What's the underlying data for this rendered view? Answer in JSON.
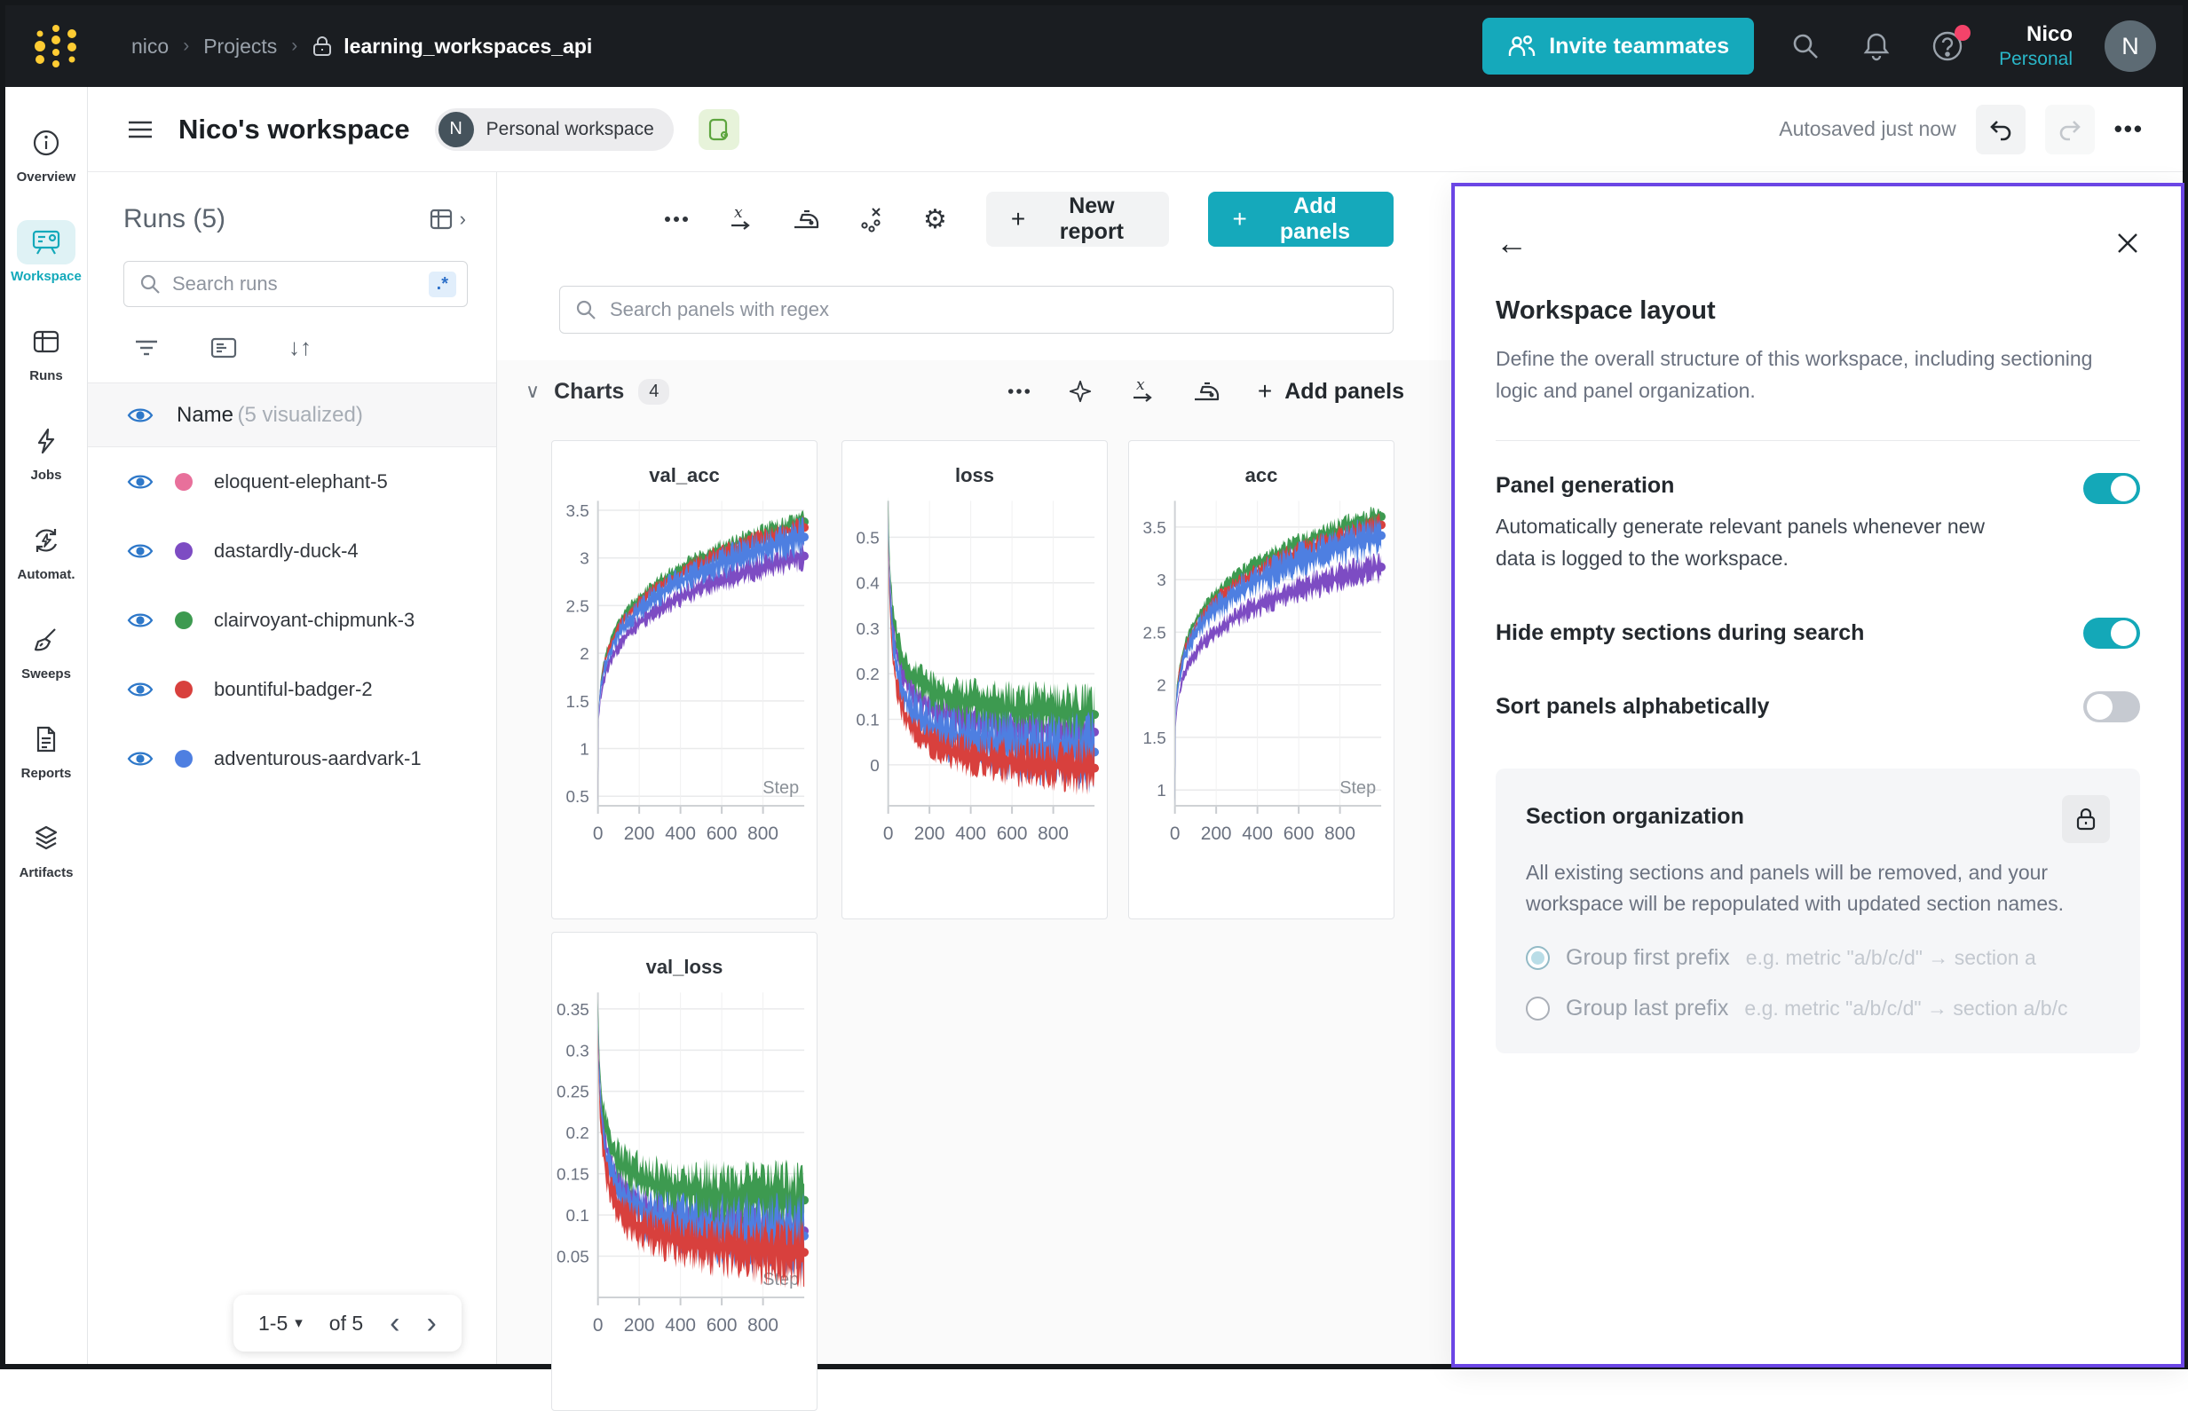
{
  "navbar": {
    "breadcrumb": [
      "nico",
      "Projects"
    ],
    "project": "learning_workspaces_api",
    "invite_label": "Invite teammates",
    "user_name": "Nico",
    "user_scope": "Personal",
    "avatar_initial": "N"
  },
  "header": {
    "title": "Nico's workspace",
    "badge_initial": "N",
    "badge_label": "Personal workspace",
    "autosave_status": "Autosaved just now"
  },
  "sidebar": {
    "items": [
      {
        "label": "Overview",
        "active": false
      },
      {
        "label": "Workspace",
        "active": true
      },
      {
        "label": "Runs",
        "active": false
      },
      {
        "label": "Jobs",
        "active": false
      },
      {
        "label": "Automat.",
        "active": false
      },
      {
        "label": "Sweeps",
        "active": false
      },
      {
        "label": "Reports",
        "active": false
      },
      {
        "label": "Artifacts",
        "active": false
      }
    ]
  },
  "runs_panel": {
    "title": "Runs (5)",
    "search_placeholder": "Search runs",
    "regex_badge": ".*",
    "header_name": "Name",
    "header_sub": "(5 visualized)",
    "runs": [
      {
        "name": "eloquent-elephant-5",
        "color": "#e8709b"
      },
      {
        "name": "dastardly-duck-4",
        "color": "#7d4cc3"
      },
      {
        "name": "clairvoyant-chipmunk-3",
        "color": "#3d9a50"
      },
      {
        "name": "bountiful-badger-2",
        "color": "#d8403d"
      },
      {
        "name": "adventurous-aardvark-1",
        "color": "#4e7fe1"
      }
    ],
    "pagination": {
      "range": "1-5",
      "of": "of 5"
    }
  },
  "main": {
    "new_report_label": "New report",
    "add_panels_label": "Add panels",
    "search_placeholder": "Search panels with regex",
    "section": {
      "title": "Charts",
      "count": "4",
      "add_panels_label": "Add panels"
    }
  },
  "drawer": {
    "title": "Workspace layout",
    "description": "Define the overall structure of this workspace, including sectioning logic and panel organization.",
    "settings": [
      {
        "title": "Panel generation",
        "description": "Automatically generate relevant panels whenever new data is logged to the workspace.",
        "enabled": true
      },
      {
        "title": "Hide empty sections during search",
        "description": "",
        "enabled": true
      },
      {
        "title": "Sort panels alphabetically",
        "description": "",
        "enabled": false
      }
    ],
    "section_org": {
      "title": "Section organization",
      "description": "All existing sections and panels will be removed, and your workspace will be repopulated with updated section names.",
      "options": [
        {
          "label": "Group first prefix",
          "example": "e.g. metric \"a/b/c/d\" → section a",
          "selected": true
        },
        {
          "label": "Group last prefix",
          "example": "e.g. metric \"a/b/c/d\" → section a/b/c",
          "selected": false
        }
      ]
    }
  },
  "palette": {
    "accent_teal": "#13a9ba",
    "drawer_border_purple": "#6b46e5",
    "notification_red": "#f4436a"
  },
  "chart_data": [
    {
      "type": "line",
      "title": "val_acc",
      "xlabel": "Step",
      "x_range": [
        0,
        1000
      ],
      "xticks": [
        0,
        200,
        400,
        600,
        800
      ],
      "ylim": [
        0.4,
        3.6
      ],
      "yticks": [
        0.5,
        1,
        1.5,
        2,
        2.5,
        3,
        3.5
      ],
      "shape": "rise",
      "show_step_label": true,
      "grid": true,
      "legend": false,
      "series": [
        {
          "name": "dastardly-duck-4",
          "color": "#7d4cc3",
          "y_start": 0.45,
          "y_end": 3.02,
          "band": 0.09
        },
        {
          "name": "clairvoyant-chipmunk-3",
          "color": "#3d9a50",
          "y_start": 0.45,
          "y_end": 3.38,
          "band": 0.07
        },
        {
          "name": "bountiful-badger-2",
          "color": "#d8403d",
          "y_start": 0.45,
          "y_end": 3.32,
          "band": 0.07
        },
        {
          "name": "adventurous-aardvark-1",
          "color": "#4e7fe1",
          "y_start": 0.45,
          "y_end": 3.22,
          "band": 0.12
        }
      ]
    },
    {
      "type": "line",
      "title": "loss",
      "xlabel": "Step",
      "x_range": [
        0,
        1000
      ],
      "xticks": [
        0,
        200,
        400,
        600,
        800
      ],
      "ylim": [
        -0.09,
        0.58
      ],
      "yticks": [
        0,
        0.1,
        0.2,
        0.3,
        0.4,
        0.5
      ],
      "shape": "decay",
      "show_step_label": false,
      "grid": true,
      "legend": false,
      "series": [
        {
          "name": "dastardly-duck-4",
          "color": "#7d4cc3",
          "y_start": 0.55,
          "y_end": 0.035,
          "band": 0.035
        },
        {
          "name": "clairvoyant-chipmunk-3",
          "color": "#3d9a50",
          "y_start": 0.57,
          "y_end": 0.075,
          "band": 0.04
        },
        {
          "name": "adventurous-aardvark-1",
          "color": "#4e7fe1",
          "y_start": 0.52,
          "y_end": -0.01,
          "band": 0.05
        },
        {
          "name": "bountiful-badger-2",
          "color": "#d8403d",
          "y_start": 0.48,
          "y_end": -0.045,
          "band": 0.035
        }
      ]
    },
    {
      "type": "line",
      "title": "acc",
      "xlabel": "Step",
      "x_range": [
        0,
        1000
      ],
      "xticks": [
        0,
        200,
        400,
        600,
        800
      ],
      "ylim": [
        0.85,
        3.75
      ],
      "yticks": [
        1,
        1.5,
        2,
        2.5,
        3,
        3.5
      ],
      "shape": "rise",
      "show_step_label": true,
      "grid": true,
      "legend": false,
      "series": [
        {
          "name": "dastardly-duck-4",
          "color": "#7d4cc3",
          "y_start": 0.9,
          "y_end": 3.12,
          "band": 0.09
        },
        {
          "name": "clairvoyant-chipmunk-3",
          "color": "#3d9a50",
          "y_start": 0.9,
          "y_end": 3.6,
          "band": 0.07
        },
        {
          "name": "bountiful-badger-2",
          "color": "#d8403d",
          "y_start": 0.9,
          "y_end": 3.52,
          "band": 0.07
        },
        {
          "name": "adventurous-aardvark-1",
          "color": "#4e7fe1",
          "y_start": 0.9,
          "y_end": 3.42,
          "band": 0.12
        }
      ]
    },
    {
      "type": "line",
      "title": "val_loss",
      "xlabel": "Step",
      "x_range": [
        0,
        1000
      ],
      "xticks": [
        0,
        200,
        400,
        600,
        800
      ],
      "ylim": [
        0.0,
        0.37
      ],
      "yticks": [
        0.05,
        0.1,
        0.15,
        0.2,
        0.25,
        0.3,
        0.35
      ],
      "shape": "decay",
      "show_step_label": true,
      "grid": true,
      "legend": false,
      "series": [
        {
          "name": "dastardly-duck-4",
          "color": "#7d4cc3",
          "y_start": 0.35,
          "y_end": 0.06,
          "band": 0.022
        },
        {
          "name": "clairvoyant-chipmunk-3",
          "color": "#3d9a50",
          "y_start": 0.35,
          "y_end": 0.1,
          "band": 0.028
        },
        {
          "name": "adventurous-aardvark-1",
          "color": "#4e7fe1",
          "y_start": 0.33,
          "y_end": 0.055,
          "band": 0.03
        },
        {
          "name": "bountiful-badger-2",
          "color": "#d8403d",
          "y_start": 0.31,
          "y_end": 0.035,
          "band": 0.025
        }
      ]
    }
  ]
}
